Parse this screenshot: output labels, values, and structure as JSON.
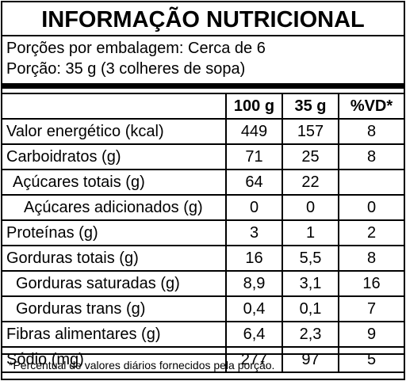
{
  "title": "INFORMAÇÃO NUTRICIONAL",
  "portions_per_package": "Porções por embalagem: Cerca de 6",
  "portion_size": "Porção: 35 g (3 colheres de sopa)",
  "columns": [
    "",
    "100 g",
    "35 g",
    "%VD*"
  ],
  "rows": [
    {
      "label": "Valor energético (kcal)",
      "v100": "449",
      "v35": "157",
      "vd": "8"
    },
    {
      "label": "Carboidratos (g)",
      "v100": "71",
      "v35": "25",
      "vd": "8"
    },
    {
      "label": "Açúcares totais (g)",
      "v100": "64",
      "v35": "22",
      "vd": ""
    },
    {
      "label": "Açúcares adicionados (g)",
      "v100": "0",
      "v35": "0",
      "vd": "0"
    },
    {
      "label": "Proteínas (g)",
      "v100": "3",
      "v35": "1",
      "vd": "2"
    },
    {
      "label": "Gorduras totais (g)",
      "v100": "16",
      "v35": "5,5",
      "vd": "8"
    },
    {
      "label": "Gorduras saturadas (g)",
      "v100": "8,9",
      "v35": "3,1",
      "vd": "16"
    },
    {
      "label": "Gorduras trans (g)",
      "v100": "0,4",
      "v35": "0,1",
      "vd": "7"
    },
    {
      "label": "Fibras alimentares (g)",
      "v100": "6,4",
      "v35": "2,3",
      "vd": "9"
    },
    {
      "label": "Sódio (mg)",
      "v100": "277",
      "v35": "97",
      "vd": "5"
    }
  ],
  "footnote": "*Percentual de valores diários fornecidos pela porção."
}
